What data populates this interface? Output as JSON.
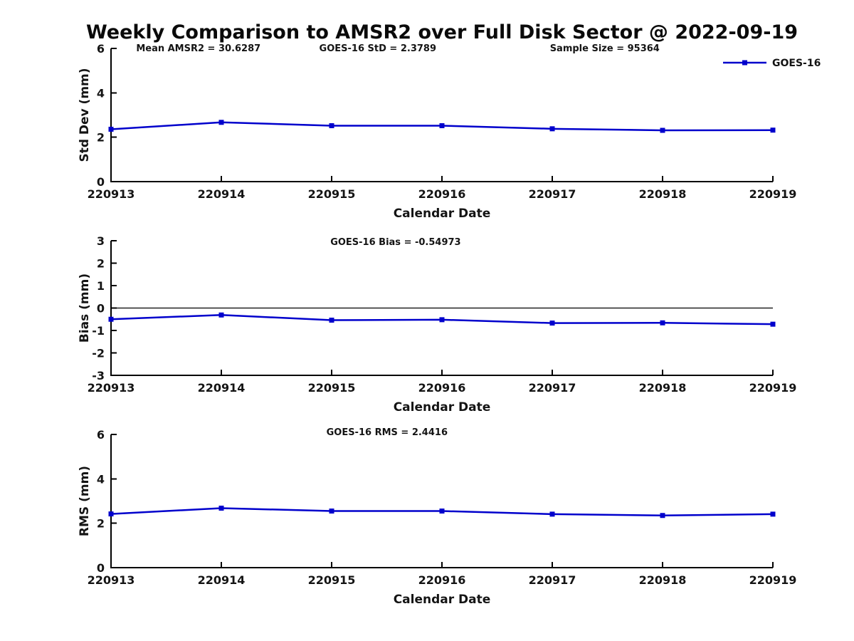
{
  "title": "Weekly Comparison to AMSR2 over Full Disk Sector @ 2022-09-19",
  "legend": {
    "label": "GOES-16",
    "marker": "square",
    "color": "#0000CC"
  },
  "colors": {
    "series": "#0000CC",
    "axis": "#000000",
    "zero_line": "#000000",
    "text": "#141414",
    "background": "#FFFFFF"
  },
  "chart_data": [
    {
      "type": "line",
      "panel": "stddev",
      "title": "",
      "annotations": [
        "Mean AMSR2 = 30.6287",
        "GOES-16 StD = 2.3789",
        "Sample Size = 95364"
      ],
      "categories": [
        "220913",
        "220914",
        "220915",
        "220916",
        "220917",
        "220918",
        "220919"
      ],
      "series": [
        {
          "name": "GOES-16",
          "values": [
            2.36,
            2.67,
            2.52,
            2.52,
            2.38,
            2.31,
            2.32
          ]
        }
      ],
      "xlabel": "Calendar Date",
      "ylabel": "Std Dev (mm)",
      "ylim": [
        0,
        6
      ],
      "yticks": [
        0,
        2,
        4,
        6
      ],
      "grid": false,
      "legend_visible": true,
      "legend_position": "top-right-outside",
      "zero_line": false
    },
    {
      "type": "line",
      "panel": "bias",
      "title": "",
      "annotations": [
        "GOES-16 Bias  = -0.54973"
      ],
      "categories": [
        "220913",
        "220914",
        "220915",
        "220916",
        "220917",
        "220918",
        "220919"
      ],
      "series": [
        {
          "name": "GOES-16",
          "values": [
            -0.5,
            -0.31,
            -0.54,
            -0.52,
            -0.67,
            -0.66,
            -0.72
          ]
        }
      ],
      "xlabel": "Calendar Date",
      "ylabel": "Bias (mm)",
      "ylim": [
        -3,
        3
      ],
      "yticks": [
        -3,
        -2,
        -1,
        0,
        1,
        2,
        3
      ],
      "grid": false,
      "legend_visible": false,
      "zero_line": true
    },
    {
      "type": "line",
      "panel": "rms",
      "title": "",
      "annotations": [
        "GOES-16 RMS = 2.4416"
      ],
      "categories": [
        "220913",
        "220914",
        "220915",
        "220916",
        "220917",
        "220918",
        "220919"
      ],
      "series": [
        {
          "name": "GOES-16",
          "values": [
            2.42,
            2.68,
            2.55,
            2.55,
            2.41,
            2.35,
            2.41
          ]
        }
      ],
      "xlabel": "Calendar Date",
      "ylabel": "RMS (mm)",
      "ylim": [
        0,
        6
      ],
      "yticks": [
        0,
        2,
        4,
        6
      ],
      "grid": false,
      "legend_visible": false,
      "zero_line": false
    }
  ]
}
